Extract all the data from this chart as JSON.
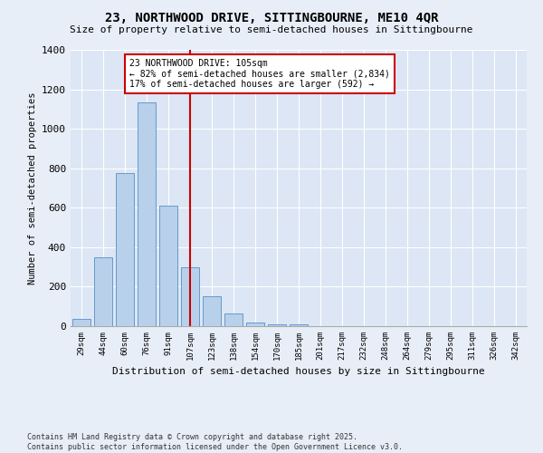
{
  "title1": "23, NORTHWOOD DRIVE, SITTINGBOURNE, ME10 4QR",
  "title2": "Size of property relative to semi-detached houses in Sittingbourne",
  "xlabel": "Distribution of semi-detached houses by size in Sittingbourne",
  "ylabel": "Number of semi-detached properties",
  "footnote1": "Contains HM Land Registry data © Crown copyright and database right 2025.",
  "footnote2": "Contains public sector information licensed under the Open Government Licence v3.0.",
  "annotation_title": "23 NORTHWOOD DRIVE: 105sqm",
  "annotation_line1": "← 82% of semi-detached houses are smaller (2,834)",
  "annotation_line2": "17% of semi-detached houses are larger (592) →",
  "bar_labels": [
    "29sqm",
    "44sqm",
    "60sqm",
    "76sqm",
    "91sqm",
    "107sqm",
    "123sqm",
    "138sqm",
    "154sqm",
    "170sqm",
    "185sqm",
    "201sqm",
    "217sqm",
    "232sqm",
    "248sqm",
    "264sqm",
    "279sqm",
    "295sqm",
    "311sqm",
    "326sqm",
    "342sqm"
  ],
  "bar_values": [
    35,
    350,
    775,
    1135,
    610,
    300,
    150,
    65,
    20,
    10,
    10,
    0,
    0,
    0,
    0,
    0,
    0,
    0,
    0,
    0,
    0
  ],
  "bar_color": "#b8d0ea",
  "bar_edge_color": "#6699cc",
  "red_line_color": "#cc0000",
  "background_color": "#e8eef8",
  "plot_bg_color": "#dce6f5",
  "annotation_box_color": "#ffffff",
  "annotation_box_edge": "#cc0000",
  "ylim": [
    0,
    1400
  ],
  "yticks": [
    0,
    200,
    400,
    600,
    800,
    1000,
    1200,
    1400
  ],
  "red_line_index": 5
}
